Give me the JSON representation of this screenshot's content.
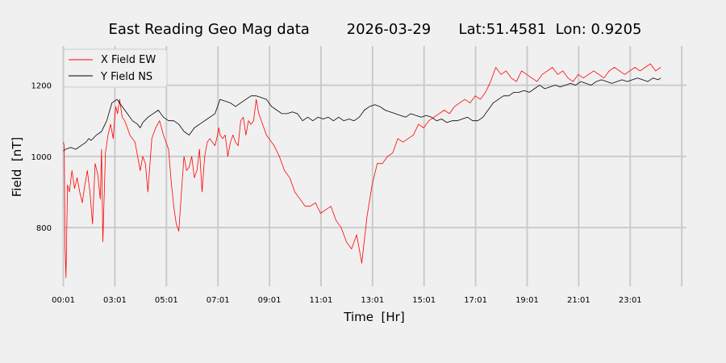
{
  "chart_data": {
    "type": "line",
    "title": "East Reading Geo Mag data        2026-03-29      Lat:51.4581  Lon: 0.9205",
    "xlabel": "Time  [Hr]",
    "ylabel": "Field  [nT]",
    "x_range_hours": [
      0,
      24.2
    ],
    "ylim": [
      635,
      1310
    ],
    "x_ticks": [
      {
        "hour": 0.0167,
        "label": "00:01"
      },
      {
        "hour": 2.0167,
        "label": "03:01"
      },
      {
        "hour": 4.0167,
        "label": "05:01"
      },
      {
        "hour": 6.0167,
        "label": "07:01"
      },
      {
        "hour": 8.0167,
        "label": "09:01"
      },
      {
        "hour": 10.0167,
        "label": "11:01"
      },
      {
        "hour": 12.0167,
        "label": "13:01"
      },
      {
        "hour": 14.0167,
        "label": "15:01"
      },
      {
        "hour": 16.0167,
        "label": "17:01"
      },
      {
        "hour": 18.0167,
        "label": "19:01"
      },
      {
        "hour": 20.0167,
        "label": "21:01"
      },
      {
        "hour": 22.0167,
        "label": "23:01"
      },
      {
        "hour": 24.0167,
        "label": ""
      }
    ],
    "y_ticks": [
      800,
      1000,
      1200
    ],
    "grid": true,
    "legend": "top-left",
    "colors": {
      "x_field": "#ff0000",
      "y_field": "#000000",
      "background": "#f0f0f0",
      "grid": "#cbcbcb"
    },
    "series": [
      {
        "name": "X Field EW",
        "color": "#ff0000",
        "x": [
          0.02,
          0.05,
          0.08,
          0.12,
          0.18,
          0.25,
          0.35,
          0.45,
          0.55,
          0.65,
          0.75,
          0.85,
          0.95,
          1.05,
          1.15,
          1.25,
          1.35,
          1.45,
          1.5,
          1.55,
          1.65,
          1.75,
          1.85,
          1.95,
          2.0,
          2.05,
          2.12,
          2.2,
          2.3,
          2.4,
          2.5,
          2.6,
          2.7,
          2.8,
          2.9,
          3.0,
          3.1,
          3.2,
          3.3,
          3.45,
          3.6,
          3.75,
          3.9,
          4.0,
          4.1,
          4.2,
          4.3,
          4.4,
          4.5,
          4.6,
          4.7,
          4.8,
          4.9,
          5.0,
          5.1,
          5.2,
          5.3,
          5.4,
          5.5,
          5.6,
          5.7,
          5.8,
          5.9,
          6.0,
          6.05,
          6.1,
          6.2,
          6.3,
          6.4,
          6.5,
          6.6,
          6.7,
          6.8,
          6.9,
          7.0,
          7.1,
          7.2,
          7.3,
          7.4,
          7.5,
          7.6,
          7.7,
          7.8,
          7.9,
          8.0,
          8.2,
          8.4,
          8.6,
          8.8,
          9.0,
          9.2,
          9.4,
          9.6,
          9.8,
          10.0,
          10.2,
          10.4,
          10.6,
          10.8,
          11.0,
          11.2,
          11.4,
          11.6,
          11.8,
          12.0,
          12.2,
          12.4,
          12.6,
          12.8,
          13.0,
          13.2,
          13.4,
          13.6,
          13.8,
          14.0,
          14.2,
          14.4,
          14.6,
          14.8,
          15.0,
          15.2,
          15.4,
          15.6,
          15.8,
          16.0,
          16.2,
          16.4,
          16.6,
          16.8,
          17.0,
          17.2,
          17.4,
          17.6,
          17.8,
          18.0,
          18.2,
          18.4,
          18.6,
          18.8,
          19.0,
          19.2,
          19.4,
          19.6,
          19.8,
          20.0,
          20.2,
          20.4,
          20.6,
          20.8,
          21.0,
          21.2,
          21.4,
          21.6,
          21.8,
          22.0,
          22.2,
          22.4,
          22.6,
          22.8,
          23.0,
          23.2
        ],
        "values": [
          1040,
          1030,
          750,
          660,
          920,
          900,
          960,
          910,
          940,
          900,
          870,
          920,
          960,
          900,
          810,
          980,
          950,
          880,
          1020,
          760,
          1010,
          1060,
          1090,
          1050,
          1100,
          1140,
          1120,
          1160,
          1110,
          1100,
          1080,
          1060,
          1050,
          1040,
          1000,
          960,
          1000,
          980,
          900,
          1050,
          1080,
          1100,
          1060,
          1040,
          1020,
          930,
          860,
          810,
          790,
          900,
          1000,
          960,
          970,
          1000,
          940,
          960,
          1020,
          900,
          1000,
          1040,
          1050,
          1040,
          1030,
          1060,
          1080,
          1060,
          1050,
          1060,
          1000,
          1040,
          1060,
          1040,
          1030,
          1100,
          1110,
          1060,
          1100,
          1090,
          1100,
          1160,
          1120,
          1100,
          1080,
          1060,
          1050,
          1030,
          1000,
          960,
          940,
          900,
          880,
          860,
          860,
          870,
          840,
          850,
          860,
          820,
          800,
          760,
          740,
          780,
          700,
          830,
          920,
          980,
          980,
          1000,
          1010,
          1050,
          1040,
          1050,
          1060,
          1090,
          1080,
          1100,
          1110,
          1120,
          1130,
          1120,
          1140,
          1150,
          1160,
          1150,
          1170,
          1160,
          1180,
          1210,
          1250,
          1230,
          1240,
          1220,
          1210,
          1240,
          1230,
          1220,
          1210,
          1230,
          1240,
          1250,
          1230,
          1240,
          1220,
          1210,
          1230,
          1220,
          1230,
          1240,
          1230,
          1220,
          1240,
          1250,
          1240,
          1230,
          1240,
          1250,
          1240,
          1250,
          1260,
          1240,
          1250
        ]
      },
      {
        "name": "Y Field NS",
        "color": "#000000",
        "x": [
          0.02,
          0.1,
          0.3,
          0.5,
          0.7,
          0.9,
          1.0,
          1.1,
          1.3,
          1.5,
          1.7,
          1.9,
          2.1,
          2.3,
          2.5,
          2.7,
          2.9,
          3.0,
          3.1,
          3.3,
          3.5,
          3.7,
          3.9,
          4.1,
          4.3,
          4.5,
          4.7,
          4.9,
          5.1,
          5.3,
          5.5,
          5.7,
          5.9,
          6.0,
          6.1,
          6.3,
          6.5,
          6.7,
          6.9,
          7.1,
          7.3,
          7.5,
          7.7,
          7.9,
          8.1,
          8.3,
          8.5,
          8.7,
          8.9,
          9.1,
          9.3,
          9.5,
          9.7,
          9.9,
          10.1,
          10.3,
          10.5,
          10.7,
          10.9,
          11.1,
          11.3,
          11.5,
          11.7,
          11.9,
          12.1,
          12.3,
          12.5,
          12.7,
          12.9,
          13.1,
          13.3,
          13.5,
          13.7,
          13.9,
          14.1,
          14.3,
          14.5,
          14.7,
          14.9,
          15.1,
          15.3,
          15.5,
          15.7,
          15.9,
          16.1,
          16.3,
          16.5,
          16.7,
          16.9,
          17.1,
          17.3,
          17.5,
          17.7,
          17.9,
          18.1,
          18.3,
          18.5,
          18.7,
          18.9,
          19.1,
          19.3,
          19.5,
          19.7,
          19.9,
          20.1,
          20.3,
          20.5,
          20.7,
          20.9,
          21.1,
          21.3,
          21.5,
          21.7,
          21.9,
          22.1,
          22.3,
          22.5,
          22.7,
          22.9,
          23.1,
          23.2
        ],
        "values": [
          1015,
          1020,
          1025,
          1020,
          1030,
          1040,
          1050,
          1045,
          1060,
          1070,
          1100,
          1150,
          1160,
          1140,
          1120,
          1100,
          1090,
          1080,
          1095,
          1110,
          1120,
          1130,
          1110,
          1100,
          1100,
          1090,
          1070,
          1060,
          1080,
          1090,
          1100,
          1110,
          1120,
          1140,
          1160,
          1155,
          1150,
          1140,
          1150,
          1160,
          1170,
          1170,
          1165,
          1160,
          1140,
          1130,
          1120,
          1120,
          1125,
          1120,
          1100,
          1110,
          1100,
          1110,
          1105,
          1110,
          1100,
          1110,
          1100,
          1105,
          1100,
          1110,
          1130,
          1140,
          1145,
          1140,
          1130,
          1125,
          1120,
          1115,
          1110,
          1120,
          1115,
          1110,
          1115,
          1110,
          1100,
          1105,
          1095,
          1100,
          1100,
          1105,
          1110,
          1100,
          1100,
          1110,
          1130,
          1150,
          1160,
          1170,
          1170,
          1180,
          1180,
          1185,
          1180,
          1190,
          1200,
          1190,
          1195,
          1200,
          1195,
          1200,
          1205,
          1200,
          1210,
          1205,
          1200,
          1210,
          1215,
          1210,
          1205,
          1210,
          1215,
          1210,
          1215,
          1220,
          1215,
          1210,
          1220,
          1215,
          1220
        ]
      }
    ]
  }
}
